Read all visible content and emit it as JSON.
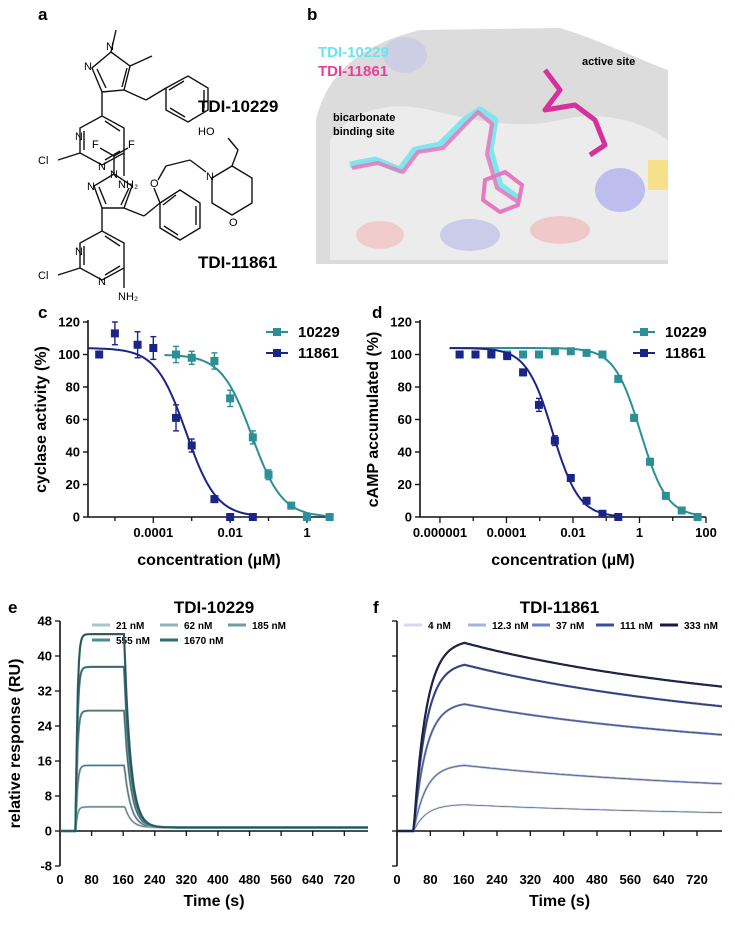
{
  "panels": {
    "a": {
      "letter": "a",
      "molecules": [
        {
          "name": "TDI-10229",
          "atoms": {
            "cl": "Cl",
            "nh2": "NH₂",
            "n1": "N",
            "n2": "N",
            "n3": "N",
            "n4": "N"
          }
        },
        {
          "name": "TDI-11861",
          "atoms": {
            "cl": "Cl",
            "nh2": "NH₂",
            "n1": "N",
            "n2": "N",
            "n3": "N",
            "n4": "N",
            "f1": "F",
            "f2": "F",
            "ho": "HO",
            "o1": "O",
            "o2": "O",
            "n5": "N"
          }
        }
      ]
    },
    "b": {
      "letter": "b",
      "legend": [
        {
          "text": "TDI-10229",
          "color": "#66e6ee"
        },
        {
          "text": "TDI-11861",
          "color": "#e8409a"
        }
      ],
      "annotations": [
        "active site",
        "bicarbonate",
        "binding site"
      ]
    }
  },
  "colors": {
    "teal": "#2a8f97",
    "navy": "#1b2587",
    "cyan_ligand": "#66e6ee",
    "magenta_ligand": "#e8409a",
    "surface": "#e4e4e4"
  },
  "chart_data": [
    {
      "panel": "c",
      "type": "scatter",
      "x_scale": "log",
      "xlabel": "concentration (µM)",
      "ylabel": "cyclase activity (%)",
      "ylim": [
        0,
        120
      ],
      "yticks": [
        0,
        20,
        40,
        60,
        80,
        100,
        120
      ],
      "xticks": [
        "0.0001",
        "0.01",
        "1"
      ],
      "legend_position": "top-right",
      "series": [
        {
          "name": "10229",
          "x": [
            0.00039,
            0.001,
            0.0039,
            0.01,
            0.039,
            0.1,
            0.39,
            1,
            3.9
          ],
          "y": [
            100,
            98,
            96,
            73,
            49,
            26,
            7,
            0,
            0
          ],
          "err": [
            5,
            4,
            5,
            5,
            4,
            3,
            2,
            1,
            1
          ]
        },
        {
          "name": "11861",
          "x": [
            3.9e-06,
            1e-05,
            3.9e-05,
            0.0001,
            0.00039,
            0.001,
            0.0039,
            0.01,
            0.039
          ],
          "y": [
            100,
            113,
            106,
            104,
            61,
            44,
            11,
            0,
            0
          ],
          "err": [
            0,
            7,
            8,
            7,
            8,
            4,
            2,
            1,
            1
          ]
        }
      ]
    },
    {
      "panel": "d",
      "type": "scatter",
      "x_scale": "log",
      "xlabel": "concentration (µM)",
      "ylabel": "cAMP accumulated (%)",
      "ylim": [
        0,
        120
      ],
      "yticks": [
        0,
        20,
        40,
        60,
        80,
        100,
        120
      ],
      "xticks": [
        "0.000001",
        "0.0001",
        "0.01",
        "1",
        "100"
      ],
      "legend_position": "top-right",
      "series": [
        {
          "name": "10229",
          "x": [
            3.9e-06,
            1.17e-05,
            3.51e-05,
            0.000105,
            0.000316,
            0.00095,
            0.00285,
            0.0086,
            0.0256,
            0.077,
            0.23,
            0.69,
            2.07,
            6.2,
            18.6,
            55.8
          ],
          "y": [
            100,
            100,
            101,
            100,
            100,
            100,
            102,
            102,
            101,
            100,
            85,
            61,
            34,
            13,
            4,
            0
          ],
          "err": [
            1,
            1,
            1,
            1,
            1,
            1,
            1,
            1,
            1,
            1,
            2,
            2,
            2,
            1,
            1,
            1
          ]
        },
        {
          "name": "11861",
          "x": [
            3.9e-06,
            1.17e-05,
            3.51e-05,
            0.000105,
            0.000316,
            0.00095,
            0.00285,
            0.0086,
            0.0256,
            0.077,
            0.23
          ],
          "y": [
            100,
            100,
            100,
            99,
            89,
            69,
            47,
            24,
            10,
            2,
            0
          ],
          "err": [
            1,
            1,
            1,
            1,
            2,
            4,
            3,
            2,
            1,
            1,
            1
          ]
        }
      ]
    },
    {
      "panel": "e",
      "type": "line",
      "title": "TDI-10229",
      "xlabel": "Time (s)",
      "ylabel": "relative response (RU)",
      "xlim": [
        0,
        780
      ],
      "ylim": [
        -8,
        48
      ],
      "xticks": [
        0,
        80,
        160,
        240,
        320,
        400,
        480,
        560,
        640,
        720
      ],
      "yticks": [
        -8,
        0,
        8,
        16,
        24,
        32,
        40,
        48
      ],
      "legend_position": "top",
      "series": [
        {
          "name": "21 nM",
          "plateau": 5.5,
          "color": "#a9c6ca"
        },
        {
          "name": "62 nM",
          "plateau": 15,
          "color": "#8cb2b7"
        },
        {
          "name": "185 nM",
          "plateau": 27.5,
          "color": "#6d9ea4"
        },
        {
          "name": "555 nM",
          "plateau": 37.5,
          "color": "#4a8a91"
        },
        {
          "name": "1670 nM",
          "plateau": 45,
          "color": "#2e6b72"
        }
      ]
    },
    {
      "panel": "f",
      "type": "line",
      "title": "TDI-11861",
      "xlabel": "Time (s)",
      "xlim": [
        0,
        780
      ],
      "ylim": [
        -8,
        48
      ],
      "xticks": [
        0,
        80,
        160,
        240,
        320,
        400,
        480,
        560,
        640,
        720
      ],
      "legend_position": "top",
      "series": [
        {
          "name": "4 nM",
          "peak": 6,
          "end": 4.2,
          "color": "#d3daf0"
        },
        {
          "name": "12.3 nM",
          "peak": 15,
          "end": 10.8,
          "color": "#a4b2e0"
        },
        {
          "name": "37 nM",
          "peak": 29,
          "end": 22,
          "color": "#6f82c8"
        },
        {
          "name": "111 nM",
          "peak": 38,
          "end": 28.5,
          "color": "#3c4f9c"
        },
        {
          "name": "333 nM",
          "peak": 43,
          "end": 33,
          "color": "#141c46"
        }
      ]
    }
  ]
}
